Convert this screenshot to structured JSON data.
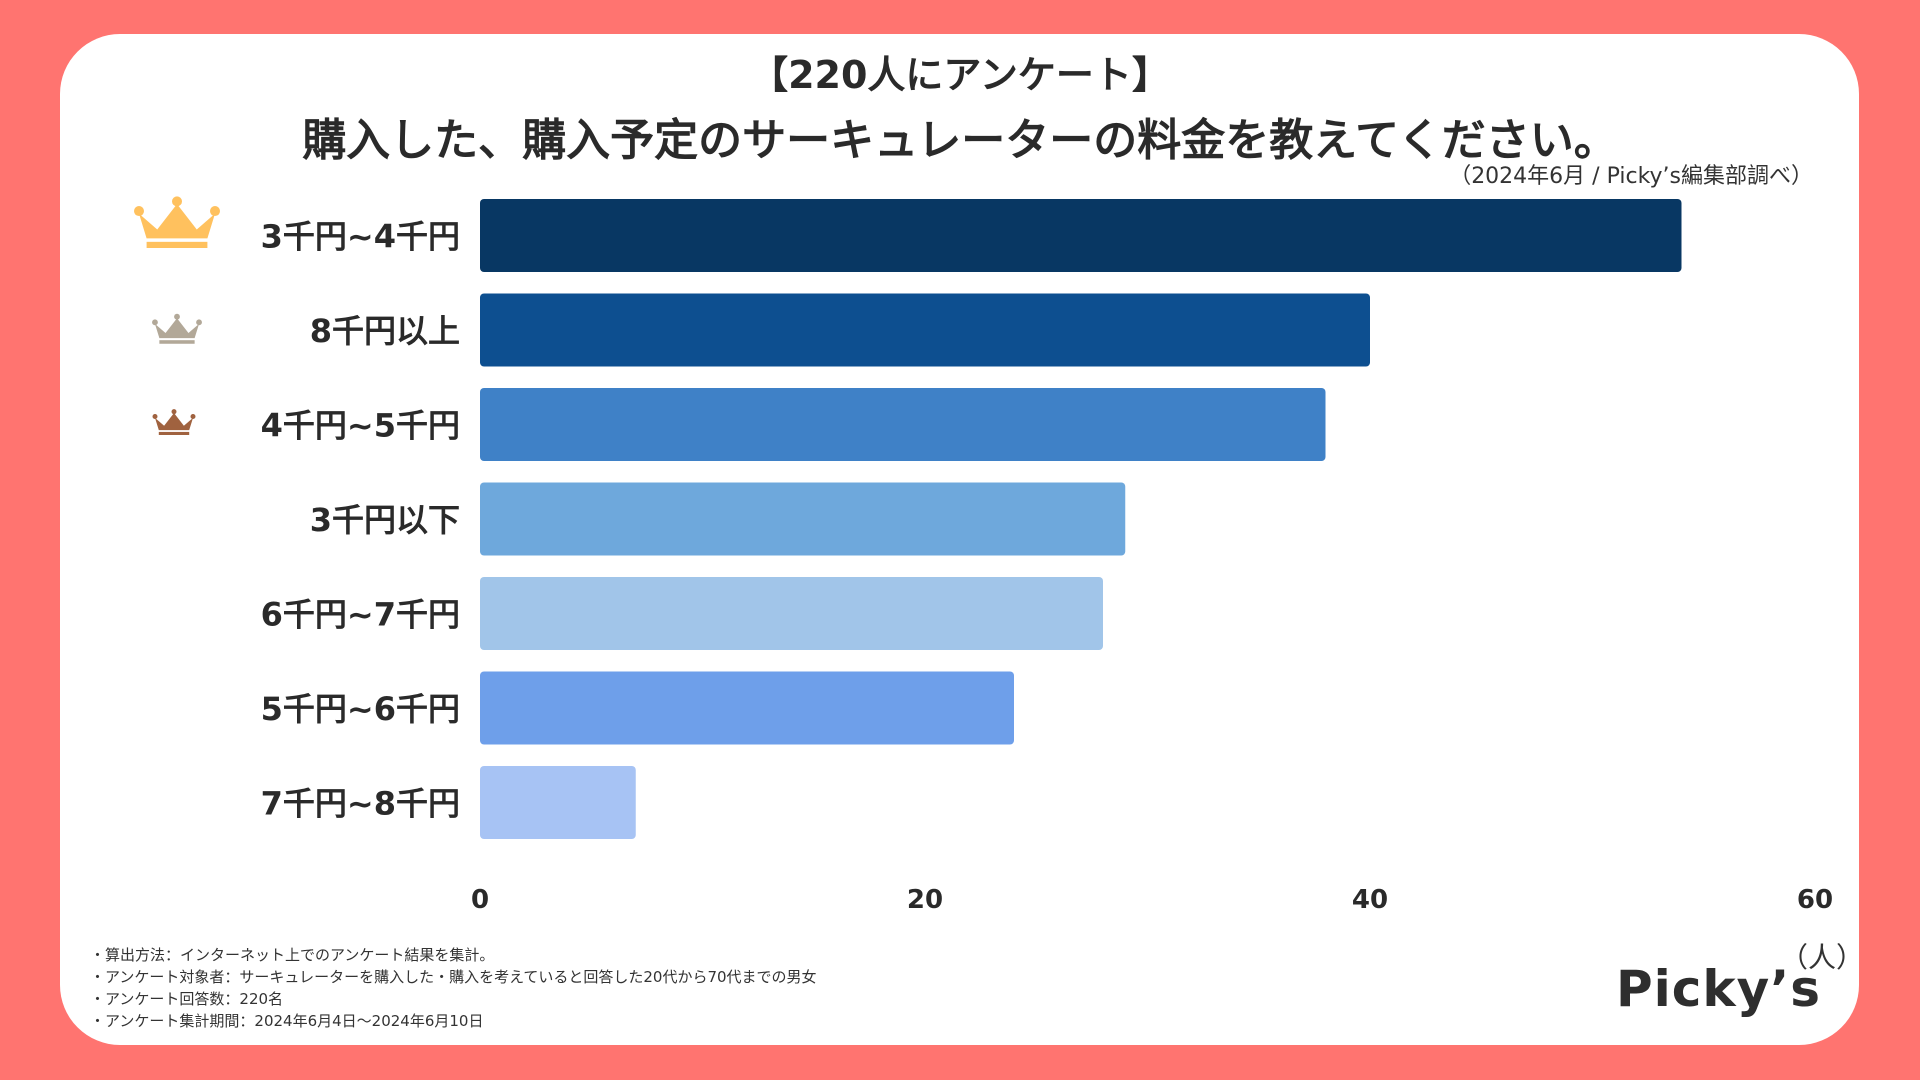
{
  "header": {
    "title": "【220人にアンケート】",
    "subtitle": "購入した、購入予定のサーキュレーターの料金を教えてください。",
    "source": "（2024年6月 / Picky’s編集部調べ）"
  },
  "chart_data": {
    "type": "bar",
    "orientation": "horizontal",
    "categories": [
      "3千円~4千円",
      "8千円以上",
      "4千円~5千円",
      "3千円以下",
      "6千円~7千円",
      "5千円~6千円",
      "7千円~8千円"
    ],
    "values": [
      54,
      40,
      38,
      29,
      28,
      24,
      7
    ],
    "colors": [
      "#083763",
      "#0D4F90",
      "#3F81C7",
      "#6EA8DC",
      "#A1C5E9",
      "#6E9FEA",
      "#A7C3F4"
    ],
    "rank_crowns": [
      {
        "rank": 1,
        "color": "#FFC15E"
      },
      {
        "rank": 2,
        "color": "#B2A898"
      },
      {
        "rank": 3,
        "color": "#A0623F"
      }
    ],
    "xlim": [
      0,
      60
    ],
    "xticks": [
      "0",
      "20",
      "40",
      "60"
    ],
    "unit": "（人）",
    "grid": false
  },
  "notes": [
    "・算出方法：インターネット上でのアンケート結果を集計。",
    "・アンケート対象者：サーキュレーターを購入した・購入を考えていると回答した20代から70代までの男女",
    "・アンケート回答数：220名",
    "・アンケート集計期間：2024年6月4日〜2024年6月10日"
  ],
  "brand": "Picky’s"
}
